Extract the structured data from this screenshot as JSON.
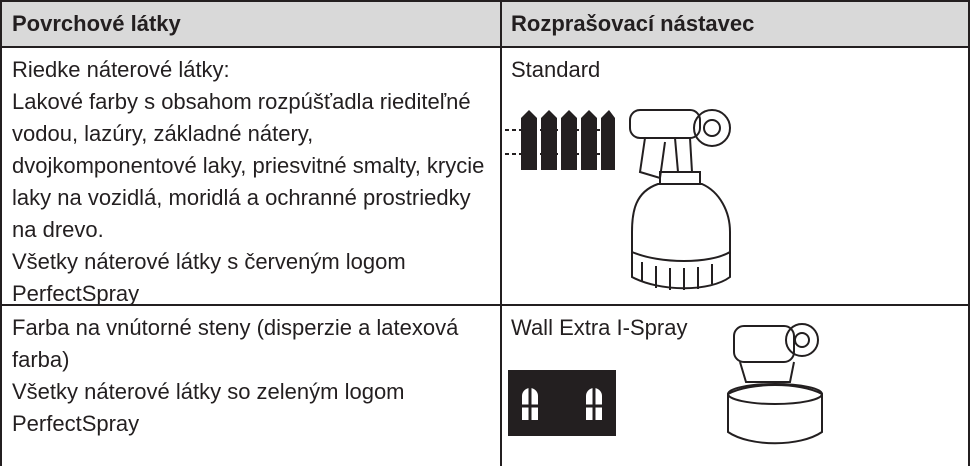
{
  "table": {
    "header": [
      "Povrchové látky",
      "Rozprašovací nástavec"
    ],
    "rows": [
      [
        [
          "Riedke náterové látky:",
          "Lakové farby s obsahom rozpúšťadla riediteľné vodou, lazúry, základné nátery, dvojkomponentové laky, priesvitné smalty, krycie laky na vozidlá, moridlá a ochranné prostriedky na drevo.",
          "Všetky náterové látky s červeným logom PerfectSpray"
        ],
        "Standard"
      ],
      [
        [
          "Farba na vnútorné steny (disperzie a latexová farba)",
          "Všetky náterové látky so zeleným logom PerfectSpray"
        ],
        "Wall Extra I-Spray"
      ]
    ]
  }
}
